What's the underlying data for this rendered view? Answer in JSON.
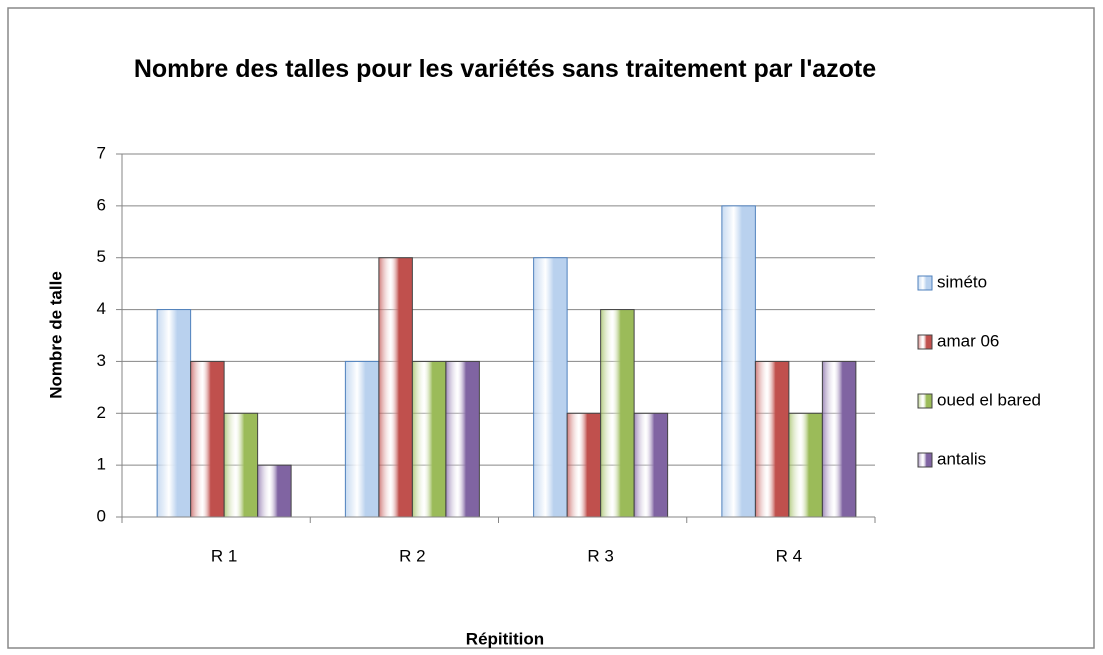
{
  "chart_data": {
    "type": "bar",
    "title": "Nombre des talles pour les variétés sans traitement par l'azote",
    "x_label": "Répitition",
    "y_label": "Nombre de talle",
    "categories": [
      "R 1",
      "R 2",
      "R 3",
      "R 4"
    ],
    "series": [
      {
        "name": "siméto",
        "color": "#b9d1ee",
        "values": [
          4,
          3,
          5,
          6
        ]
      },
      {
        "name": "amar 06",
        "color": "#c0504d",
        "values": [
          3,
          5,
          2,
          3
        ]
      },
      {
        "name": "oued el bared",
        "color": "#9bbb59",
        "values": [
          2,
          3,
          4,
          2
        ]
      },
      {
        "name": "antalis",
        "color": "#8064a2",
        "values": [
          1,
          3,
          2,
          3
        ]
      }
    ],
    "ylim": [
      0,
      7
    ],
    "yticks": [
      0,
      1,
      2,
      3,
      4,
      5,
      6,
      7
    ],
    "grid": true,
    "legend": "right"
  }
}
